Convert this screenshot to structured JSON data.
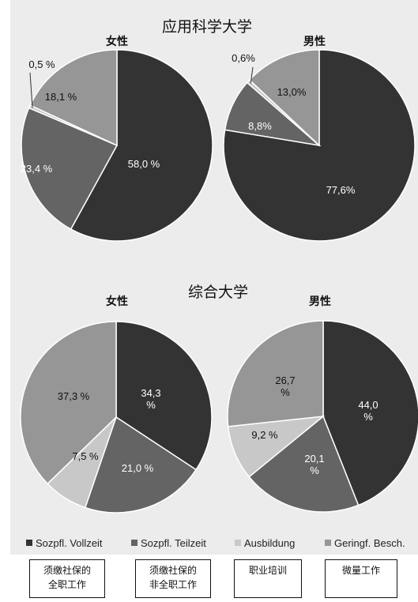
{
  "chart_data": [
    {
      "type": "pie",
      "group": "应用科学大学",
      "title": "女性",
      "categories": [
        "Sozpfl. Vollzeit",
        "Sozpfl. Teilzeit",
        "Ausbildung",
        "Geringf. Besch."
      ],
      "values": [
        58.0,
        23.4,
        0.5,
        18.1
      ],
      "labels": [
        "58,0 %",
        "23,4 %",
        "0,5 %",
        "18,1 %"
      ]
    },
    {
      "type": "pie",
      "group": "应用科学大学",
      "title": "男性",
      "categories": [
        "Sozpfl. Vollzeit",
        "Sozpfl. Teilzeit",
        "Ausbildung",
        "Geringf. Besch."
      ],
      "values": [
        77.6,
        8.8,
        0.6,
        13.0
      ],
      "labels": [
        "77,6%",
        "8,8%",
        "0,6%",
        "13,0%"
      ]
    },
    {
      "type": "pie",
      "group": "综合大学",
      "title": "女性",
      "categories": [
        "Sozpfl. Vollzeit",
        "Sozpfl. Teilzeit",
        "Ausbildung",
        "Geringf. Besch."
      ],
      "values": [
        34.3,
        21.0,
        7.5,
        37.3
      ],
      "labels": [
        "34,3\n%",
        "21,0 %",
        "7,5 %",
        "37,3 %"
      ]
    },
    {
      "type": "pie",
      "group": "综合大学",
      "title": "男性",
      "categories": [
        "Sozpfl. Vollzeit",
        "Sozpfl. Teilzeit",
        "Ausbildung",
        "Geringf. Besch."
      ],
      "values": [
        44.0,
        20.1,
        9.2,
        26.7
      ],
      "labels": [
        "44,0\n%",
        "20,1\n%",
        "9,2 %",
        "26,7\n%"
      ]
    }
  ],
  "sections": {
    "top_title": "应用科学大学",
    "bottom_title": "综合大学"
  },
  "legend": [
    {
      "label": "Sozpfl. Vollzeit",
      "color": "#333333"
    },
    {
      "label": "Sozpfl. Teilzeit",
      "color": "#646464"
    },
    {
      "label": "Ausbildung",
      "color": "#c8c8c8"
    },
    {
      "label": "Geringf. Besch.",
      "color": "#969696"
    }
  ],
  "colors": [
    "#333333",
    "#646464",
    "#c8c8c8",
    "#969696"
  ],
  "annotations": [
    {
      "lines": [
        "须缴社保的",
        "全职工作"
      ]
    },
    {
      "lines": [
        "须缴社保的",
        "非全职工作"
      ]
    },
    {
      "lines": [
        "职业培训"
      ]
    },
    {
      "lines": [
        "微量工作"
      ]
    }
  ]
}
